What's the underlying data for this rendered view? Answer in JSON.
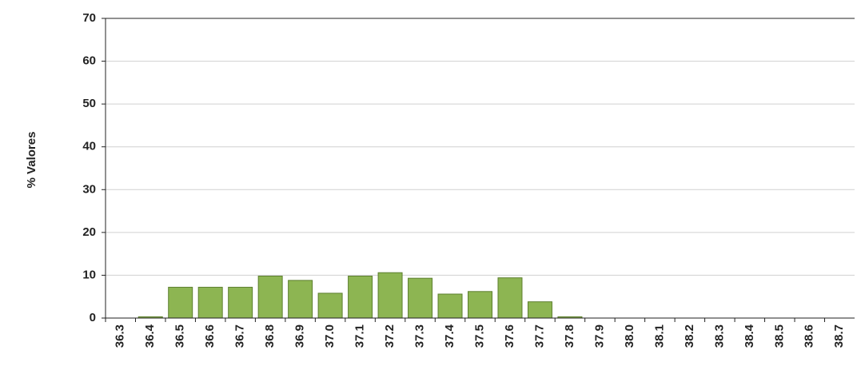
{
  "chart_data": {
    "type": "bar",
    "y_label": "% Valores",
    "categories": [
      "36.3",
      "36.4",
      "36.5",
      "36.6",
      "36.7",
      "36.8",
      "36.9",
      "37.0",
      "37.1",
      "37.2",
      "37.3",
      "37.4",
      "37.5",
      "37.6",
      "37.7",
      "37.8",
      "37.9",
      "38.0",
      "38.1",
      "38.2",
      "38.3",
      "38.4",
      "38.5",
      "38.6",
      "38.7"
    ],
    "values": [
      0,
      0.3,
      7.2,
      7.2,
      7.2,
      9.8,
      8.8,
      5.8,
      9.8,
      10.6,
      9.3,
      5.6,
      6.2,
      9.4,
      3.8,
      0.3,
      0,
      0,
      0,
      0,
      0,
      0,
      0,
      0,
      0
    ],
    "color": "#8db552",
    "ylim": [
      0,
      70
    ],
    "yticks": [
      0,
      10,
      20,
      30,
      40,
      50,
      60,
      70
    ],
    "grid": true
  }
}
